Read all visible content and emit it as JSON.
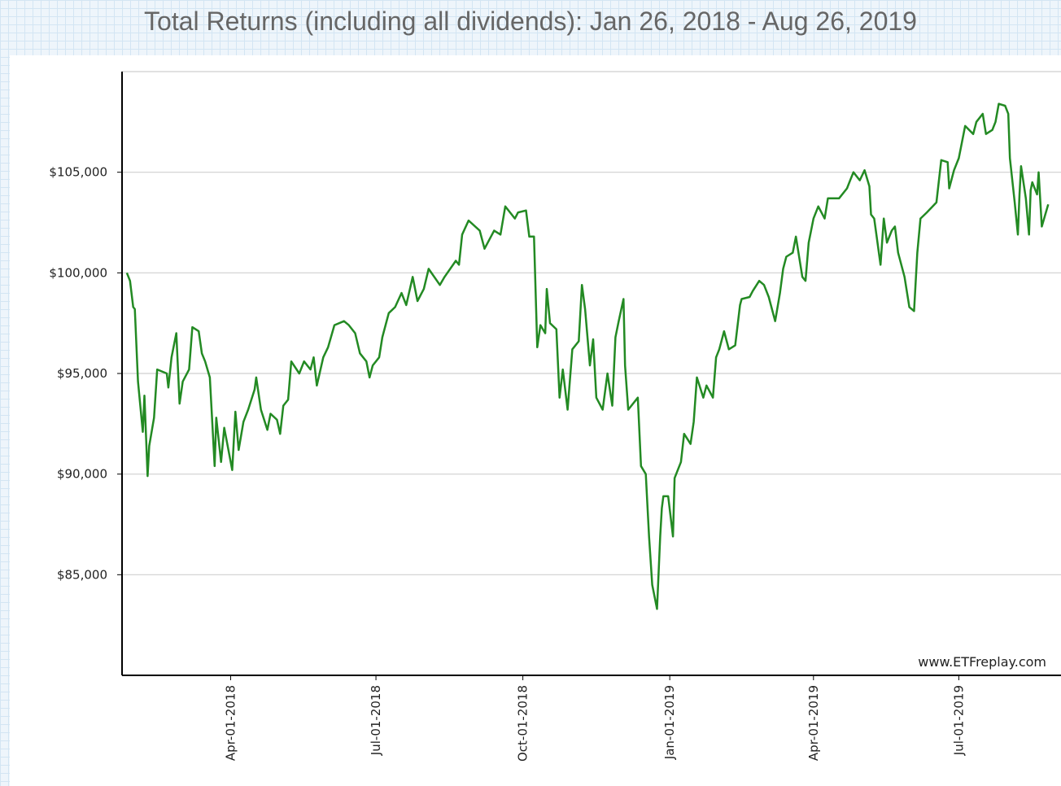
{
  "chart_data": {
    "type": "line",
    "title": "Total Returns (including all dividends): Jan 26, 2018 - Aug 26, 2019",
    "annotation": "www.ETFreplay.com",
    "color": "#238a23",
    "grid": true,
    "xlim": [
      "2018-01-23",
      "2019-09-03"
    ],
    "xticks": [
      {
        "value": "2018-04-01",
        "label": "Apr-01-2018"
      },
      {
        "value": "2018-07-01",
        "label": "Jul-01-2018"
      },
      {
        "value": "2018-10-01",
        "label": "Oct-01-2018"
      },
      {
        "value": "2019-01-01",
        "label": "Jan-01-2019"
      },
      {
        "value": "2019-04-01",
        "label": "Apr-01-2019"
      },
      {
        "value": "2019-07-01",
        "label": "Jul-01-2019"
      }
    ],
    "ylim": [
      80000,
      110000
    ],
    "yticks": [
      {
        "value": 85000,
        "label": "$85,000"
      },
      {
        "value": 90000,
        "label": "$90,000"
      },
      {
        "value": 95000,
        "label": "$95,000"
      },
      {
        "value": 100000,
        "label": "$100,000"
      },
      {
        "value": 105000,
        "label": "$105,000"
      }
    ],
    "x": [
      "2018-01-26",
      "2018-01-28",
      "2018-01-30",
      "2018-01-31",
      "2018-02-02",
      "2018-02-05",
      "2018-02-06",
      "2018-02-08",
      "2018-02-09",
      "2018-02-12",
      "2018-02-14",
      "2018-02-20",
      "2018-02-21",
      "2018-02-23",
      "2018-02-26",
      "2018-02-28",
      "2018-03-02",
      "2018-03-06",
      "2018-03-08",
      "2018-03-12",
      "2018-03-14",
      "2018-03-16",
      "2018-03-19",
      "2018-03-22",
      "2018-03-23",
      "2018-03-26",
      "2018-03-28",
      "2018-04-02",
      "2018-04-04",
      "2018-04-06",
      "2018-04-09",
      "2018-04-12",
      "2018-04-16",
      "2018-04-17",
      "2018-04-20",
      "2018-04-24",
      "2018-04-26",
      "2018-04-30",
      "2018-05-02",
      "2018-05-04",
      "2018-05-07",
      "2018-05-09",
      "2018-05-14",
      "2018-05-17",
      "2018-05-21",
      "2018-05-23",
      "2018-05-25",
      "2018-05-29",
      "2018-06-01",
      "2018-06-05",
      "2018-06-11",
      "2018-06-14",
      "2018-06-18",
      "2018-06-21",
      "2018-06-25",
      "2018-06-27",
      "2018-06-29",
      "2018-07-03",
      "2018-07-05",
      "2018-07-09",
      "2018-07-13",
      "2018-07-17",
      "2018-07-20",
      "2018-07-24",
      "2018-07-27",
      "2018-07-31",
      "2018-08-03",
      "2018-08-10",
      "2018-08-13",
      "2018-08-20",
      "2018-08-22",
      "2018-08-24",
      "2018-08-28",
      "2018-09-04",
      "2018-09-07",
      "2018-09-13",
      "2018-09-17",
      "2018-09-20",
      "2018-09-24",
      "2018-09-26",
      "2018-09-28",
      "2018-10-03",
      "2018-10-05",
      "2018-10-08",
      "2018-10-10",
      "2018-10-12",
      "2018-10-15",
      "2018-10-16",
      "2018-10-18",
      "2018-10-22",
      "2018-10-24",
      "2018-10-26",
      "2018-10-29",
      "2018-11-01",
      "2018-11-05",
      "2018-11-07",
      "2018-11-09",
      "2018-11-12",
      "2018-11-14",
      "2018-11-16",
      "2018-11-20",
      "2018-11-23",
      "2018-11-26",
      "2018-11-28",
      "2018-11-30",
      "2018-12-03",
      "2018-12-04",
      "2018-12-06",
      "2018-12-12",
      "2018-12-14",
      "2018-12-17",
      "2018-12-19",
      "2018-12-21",
      "2018-12-24",
      "2018-12-26",
      "2018-12-27",
      "2018-12-28",
      "2018-12-31",
      "2019-01-03",
      "2019-01-04",
      "2019-01-08",
      "2019-01-10",
      "2019-01-14",
      "2019-01-16",
      "2019-01-18",
      "2019-01-22",
      "2019-01-24",
      "2019-01-28",
      "2019-01-30",
      "2019-02-01",
      "2019-02-04",
      "2019-02-07",
      "2019-02-11",
      "2019-02-14",
      "2019-02-15",
      "2019-02-20",
      "2019-02-22",
      "2019-02-26",
      "2019-03-01",
      "2019-03-04",
      "2019-03-08",
      "2019-03-11",
      "2019-03-13",
      "2019-03-15",
      "2019-03-19",
      "2019-03-21",
      "2019-03-25",
      "2019-03-27",
      "2019-03-29",
      "2019-04-01",
      "2019-04-04",
      "2019-04-08",
      "2019-04-10",
      "2019-04-17",
      "2019-04-22",
      "2019-04-24",
      "2019-04-26",
      "2019-04-30",
      "2019-05-03",
      "2019-05-06",
      "2019-05-07",
      "2019-05-09",
      "2019-05-13",
      "2019-05-15",
      "2019-05-17",
      "2019-05-20",
      "2019-05-22",
      "2019-05-24",
      "2019-05-28",
      "2019-05-31",
      "2019-06-03",
      "2019-06-05",
      "2019-06-07",
      "2019-06-11",
      "2019-06-17",
      "2019-06-20",
      "2019-06-24",
      "2019-06-25",
      "2019-06-28",
      "2019-07-01",
      "2019-07-03",
      "2019-07-05",
      "2019-07-10",
      "2019-07-12",
      "2019-07-16",
      "2019-07-18",
      "2019-07-22",
      "2019-07-24",
      "2019-07-26",
      "2019-07-30",
      "2019-08-01",
      "2019-08-02",
      "2019-08-05",
      "2019-08-07",
      "2019-08-08",
      "2019-08-09",
      "2019-08-12",
      "2019-08-14",
      "2019-08-15",
      "2019-08-16",
      "2019-08-19",
      "2019-08-20",
      "2019-08-22",
      "2019-08-26"
    ],
    "values": [
      100000,
      99600,
      98300,
      98200,
      94600,
      92100,
      93900,
      89900,
      91400,
      92800,
      95200,
      95000,
      94300,
      95800,
      97000,
      93500,
      94600,
      95200,
      97300,
      97100,
      96000,
      95600,
      94800,
      90400,
      92800,
      90600,
      92300,
      90200,
      93100,
      91200,
      92600,
      93200,
      94200,
      94800,
      93200,
      92200,
      93000,
      92700,
      92000,
      93400,
      93700,
      95600,
      95000,
      95600,
      95200,
      95800,
      94400,
      95800,
      96300,
      97400,
      97600,
      97400,
      97000,
      96000,
      95600,
      94800,
      95400,
      95800,
      96800,
      98000,
      98300,
      99000,
      98400,
      99800,
      98600,
      99200,
      100200,
      99400,
      99800,
      100600,
      100400,
      101900,
      102600,
      102100,
      101200,
      102100,
      101900,
      103300,
      102900,
      102700,
      103000,
      103100,
      101800,
      101800,
      96300,
      97400,
      97000,
      99200,
      97500,
      97200,
      93800,
      95200,
      93200,
      96200,
      96600,
      99400,
      98200,
      95400,
      96700,
      93800,
      93200,
      95000,
      93400,
      96800,
      97600,
      98700,
      95400,
      93200,
      93800,
      90400,
      90000,
      86900,
      84500,
      83300,
      86900,
      88300,
      88900,
      88900,
      86900,
      89800,
      90600,
      92000,
      91500,
      92600,
      94800,
      93800,
      94400,
      93800,
      95800,
      96200,
      97100,
      96200,
      96400,
      98400,
      98700,
      98800,
      99100,
      99600,
      99400,
      98800,
      97600,
      99000,
      100200,
      100800,
      101000,
      101800,
      99800,
      99600,
      101500,
      102700,
      103300,
      102700,
      103700,
      103700,
      104200,
      104600,
      105000,
      104600,
      105100,
      104300,
      102900,
      102700,
      100400,
      102700,
      101500,
      102100,
      102300,
      101000,
      99800,
      98300,
      98100,
      101000,
      102700,
      103000,
      103500,
      105600,
      105500,
      104200,
      105100,
      105700,
      106500,
      107300,
      106900,
      107500,
      107900,
      106900,
      107100,
      107500,
      108400,
      108300,
      107900,
      105700,
      103500,
      101900,
      103900,
      105300,
      103700,
      101900,
      104100,
      104500,
      103900,
      105000,
      102300,
      103400
    ]
  }
}
